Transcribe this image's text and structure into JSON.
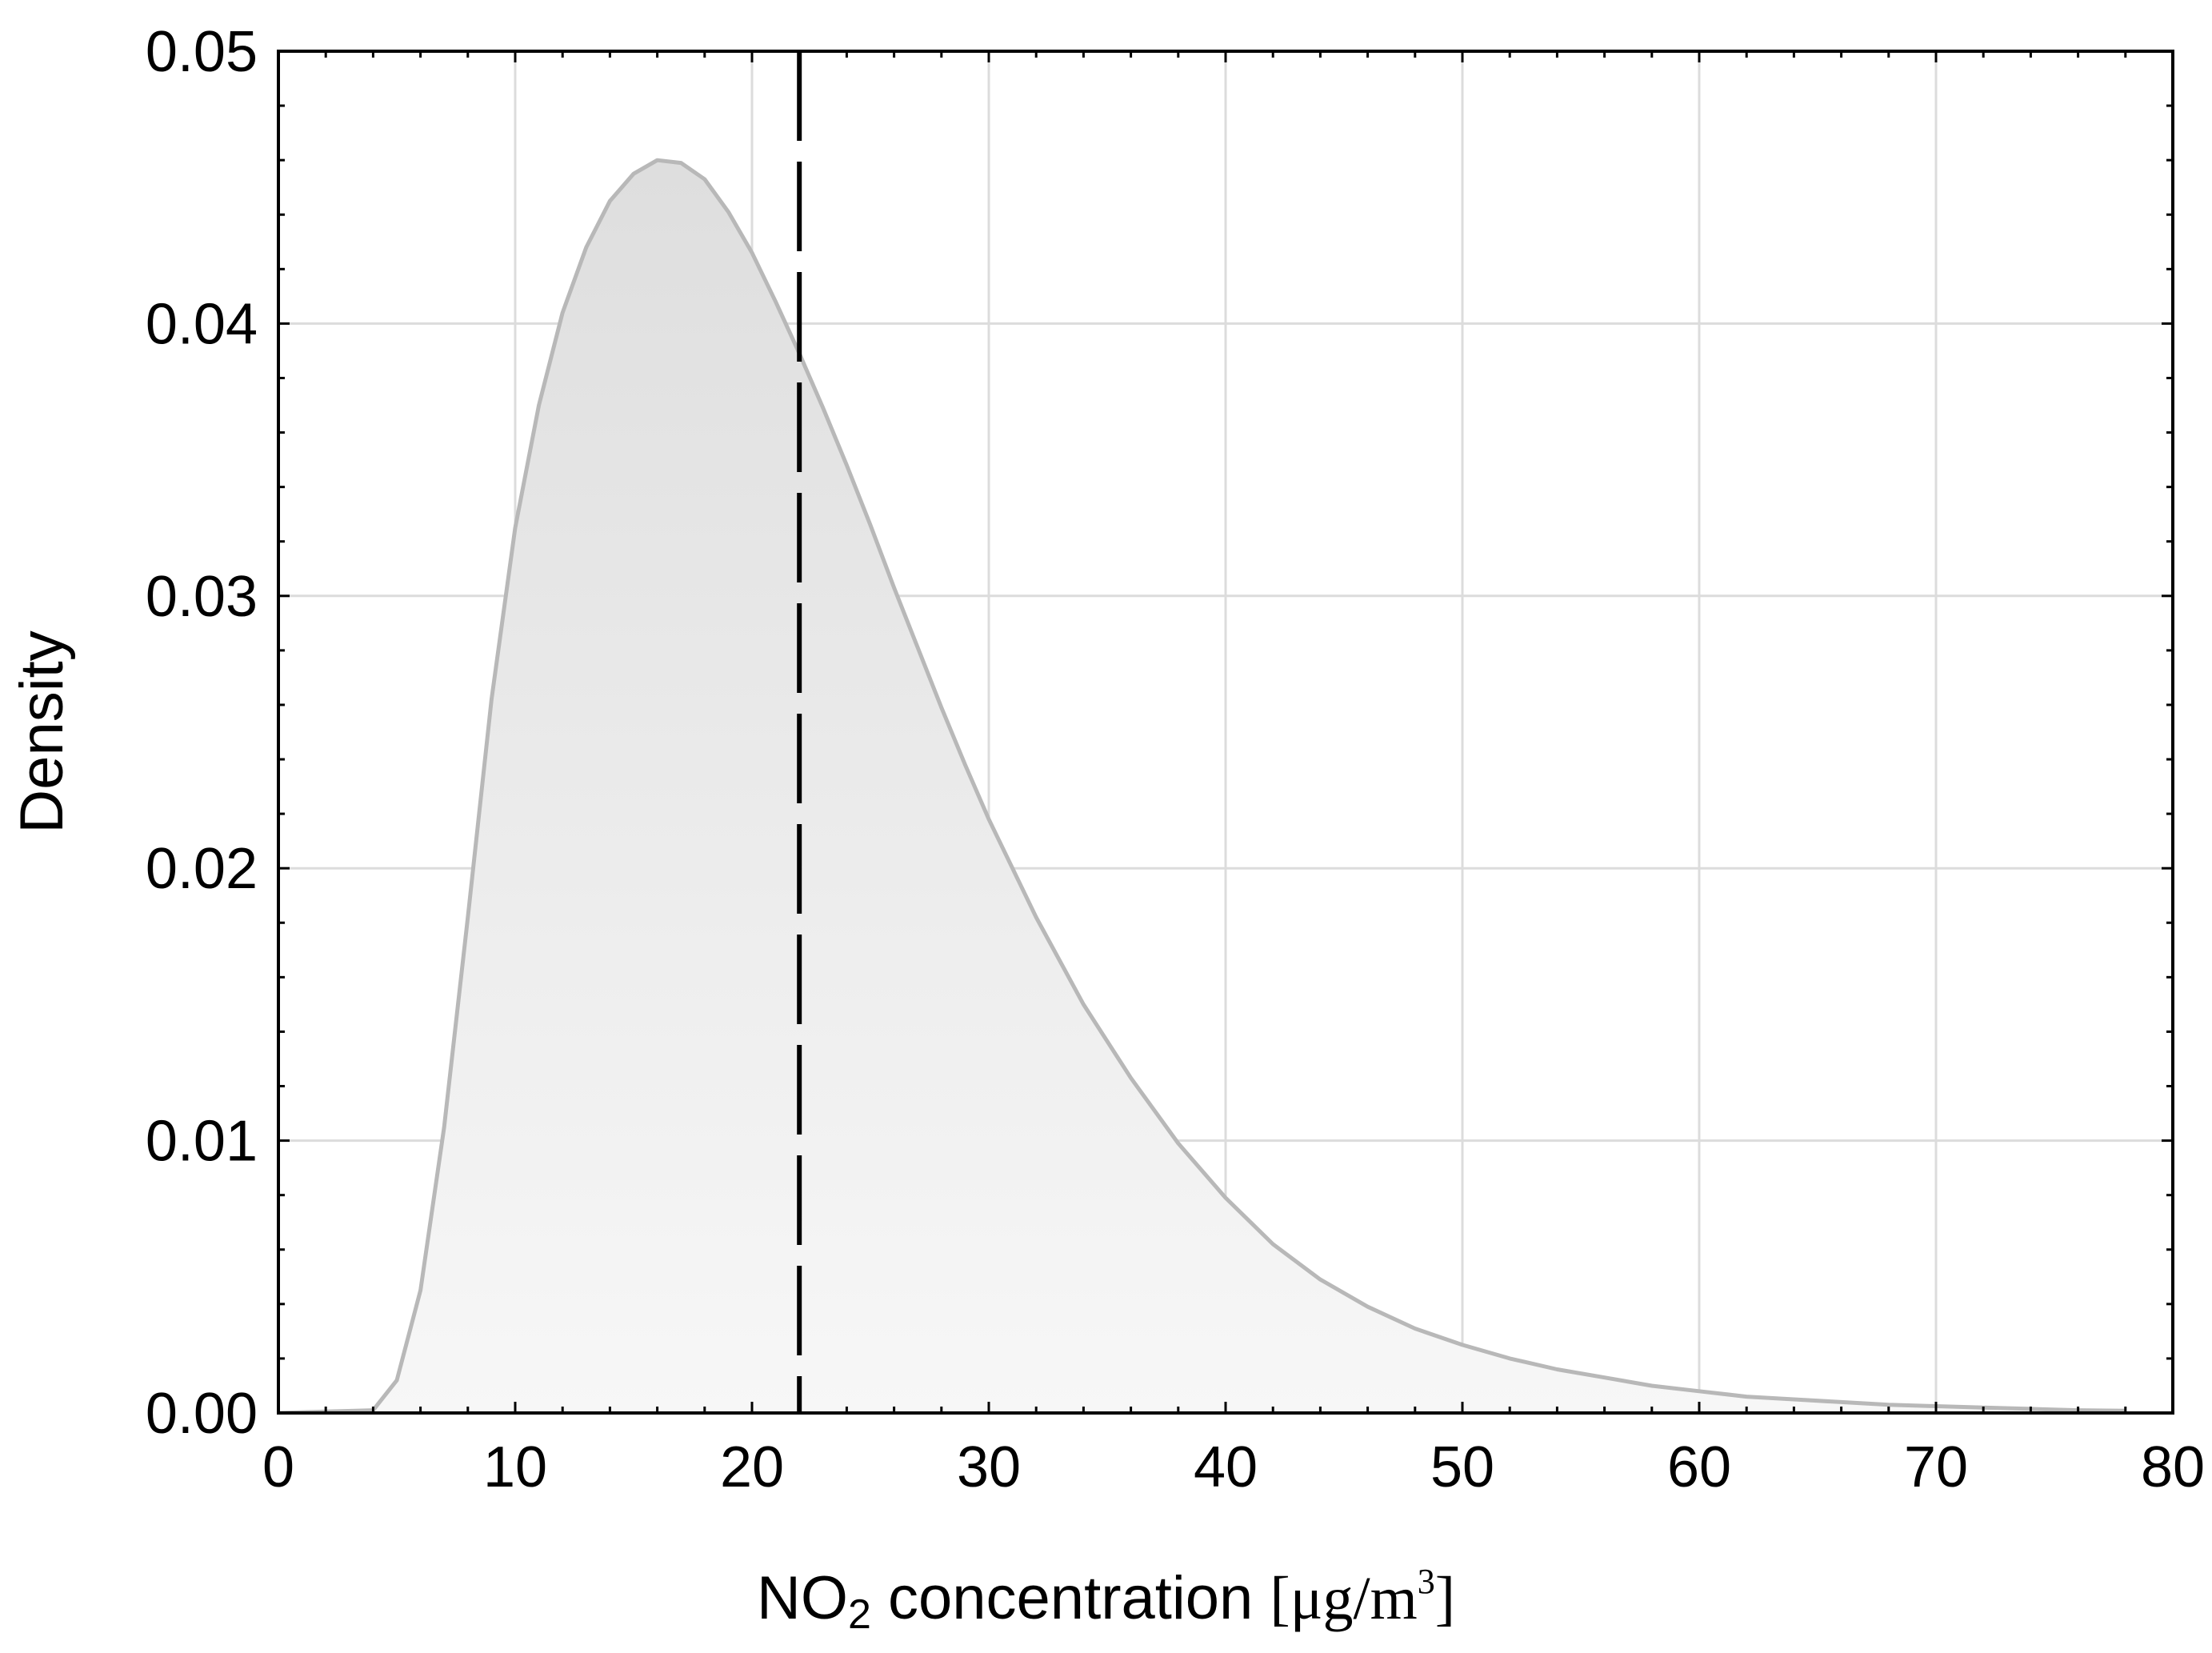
{
  "chart_data": {
    "type": "area",
    "title": "",
    "ylabel": "Density",
    "xlabel": {
      "species_main": "NO",
      "species_sub": "2",
      "rest": " concentration ",
      "unit_open": "[μg/m",
      "unit_sup": "3",
      "unit_close": "]"
    },
    "xlim": [
      0,
      80
    ],
    "ylim": [
      0,
      0.05
    ],
    "xticks": [
      0,
      10,
      20,
      30,
      40,
      50,
      60,
      70,
      80
    ],
    "xtick_labels": [
      "0",
      "10",
      "20",
      "30",
      "40",
      "50",
      "60",
      "70",
      "80"
    ],
    "yticks": [
      0,
      0.01,
      0.02,
      0.03,
      0.04,
      0.05
    ],
    "ytick_labels": [
      "0.00",
      "0.01",
      "0.02",
      "0.03",
      "0.04",
      "0.05"
    ],
    "grid": true,
    "series": [
      {
        "name": "density",
        "x": [
          0,
          4,
          5,
          6,
          7,
          8,
          9,
          10,
          11,
          12,
          13,
          14,
          15,
          16,
          17,
          18,
          19,
          20,
          21,
          22,
          23,
          24,
          25,
          26,
          27,
          28,
          29,
          30,
          32,
          34,
          36,
          38,
          40,
          42,
          44,
          46,
          48,
          50,
          52,
          54,
          56,
          58,
          60,
          62,
          64,
          66,
          68,
          70,
          72,
          74,
          76,
          78
        ],
        "y": [
          0,
          0.0001,
          0.0012,
          0.0045,
          0.0105,
          0.0182,
          0.0262,
          0.0325,
          0.037,
          0.0404,
          0.0428,
          0.0445,
          0.0455,
          0.046,
          0.0459,
          0.0453,
          0.0441,
          0.0426,
          0.0408,
          0.0389,
          0.0369,
          0.0348,
          0.0326,
          0.0303,
          0.0281,
          0.0259,
          0.0238,
          0.0218,
          0.0182,
          0.015,
          0.0123,
          0.0099,
          0.0079,
          0.0062,
          0.0049,
          0.0039,
          0.0031,
          0.0025,
          0.002,
          0.0016,
          0.0013,
          0.001,
          0.0008,
          0.0006,
          0.0005,
          0.0004,
          0.0003,
          0.00025,
          0.0002,
          0.00015,
          0.0001,
          8e-05
        ],
        "line_color": "#b8b8b8",
        "fill_top_color": "#dedede",
        "fill_bottom_color": "#f7f7f7"
      }
    ],
    "reference_line": {
      "x": 22,
      "style": "dashed",
      "color": "#000000"
    }
  }
}
